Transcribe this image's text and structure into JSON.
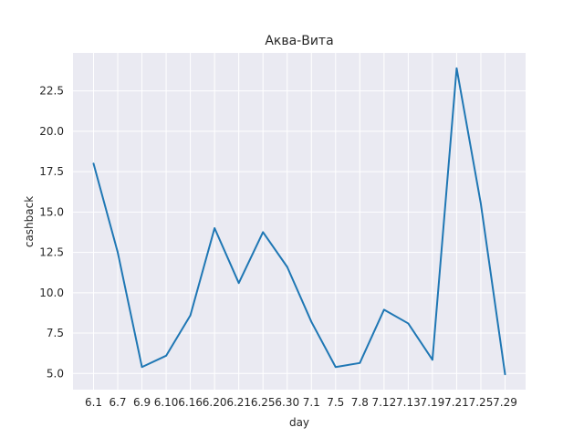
{
  "chart_data": {
    "type": "line",
    "title": "Аква-Вита",
    "xlabel": "day",
    "ylabel": "cashback",
    "categories": [
      "6.1",
      "6.7",
      "6.9",
      "6.10",
      "6.16",
      "6.20",
      "6.21",
      "6.25",
      "6.30",
      "7.1",
      "7.5",
      "7.8",
      "7.12",
      "7.13",
      "7.19",
      "7.21",
      "7.25",
      "7.29"
    ],
    "values": [
      18.0,
      12.5,
      5.4,
      6.1,
      8.6,
      14.0,
      10.6,
      13.75,
      11.6,
      8.2,
      5.4,
      5.65,
      8.95,
      8.1,
      5.85,
      23.9,
      15.5,
      4.95
    ],
    "ylim": [
      4.0,
      24.85
    ],
    "yticks": [
      5.0,
      7.5,
      10.0,
      12.5,
      15.0,
      17.5,
      20.0,
      22.5
    ],
    "ytick_labels": [
      "5.0",
      "7.5",
      "10.0",
      "12.5",
      "15.0",
      "17.5",
      "20.0",
      "22.5"
    ],
    "grid": true,
    "colors": {
      "background": "#eaeaf2",
      "grid": "#ffffff",
      "line": "#1f77b4",
      "text": "#262626"
    }
  }
}
